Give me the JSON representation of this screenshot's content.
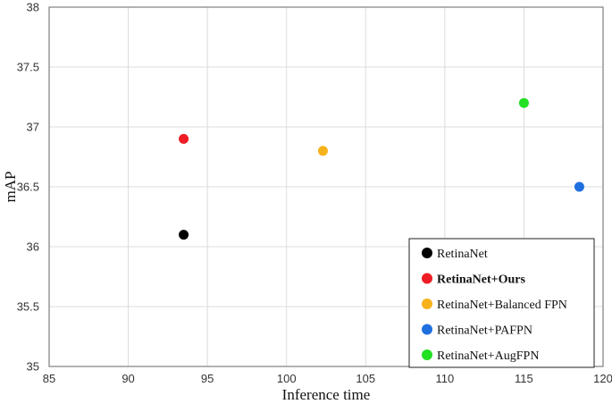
{
  "chart_data": {
    "type": "scatter",
    "xlabel": "Inference time",
    "ylabel": "mAP",
    "xlim": [
      85,
      120
    ],
    "ylim": [
      35,
      38
    ],
    "xticks": [
      "85",
      "90",
      "95",
      "100",
      "105",
      "110",
      "115",
      "120"
    ],
    "yticks": [
      "35",
      "35.5",
      "36",
      "36.5",
      "37",
      "37.5",
      "38"
    ],
    "grid": true,
    "legend_position": "bottom-right",
    "series": [
      {
        "name": "RetinaNet",
        "color": "#000000",
        "x": 93.5,
        "y": 36.1,
        "bold": false
      },
      {
        "name": "RetinaNet+Ours",
        "color": "#ee1c25",
        "x": 93.5,
        "y": 36.9,
        "bold": true
      },
      {
        "name": "RetinaNet+Balanced FPN",
        "color": "#f6b21a",
        "x": 102.3,
        "y": 36.8,
        "bold": false
      },
      {
        "name": "RetinaNet+PAFPN",
        "color": "#1f6fe0",
        "x": 118.5,
        "y": 36.5,
        "bold": false
      },
      {
        "name": "RetinaNet+AugFPN",
        "color": "#22e022",
        "x": 115.0,
        "y": 37.2,
        "bold": false
      }
    ]
  }
}
